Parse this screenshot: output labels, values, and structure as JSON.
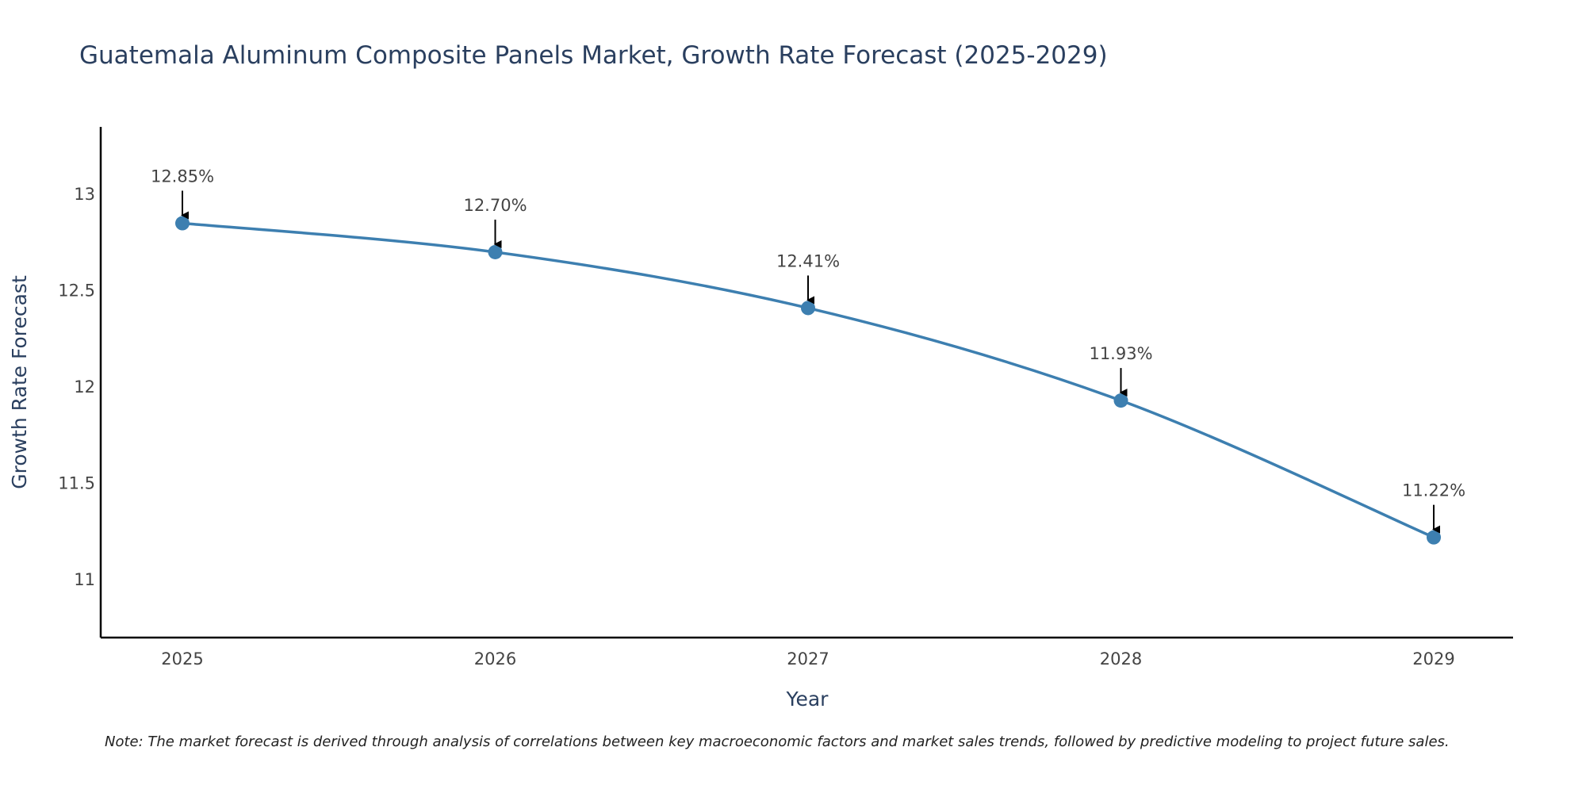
{
  "chart_data": {
    "type": "line",
    "title": "Guatemala Aluminum Composite Panels Market, Growth Rate Forecast (2025-2029)",
    "xlabel": "Year",
    "ylabel": "Growth Rate Forecast",
    "categories": [
      "2025",
      "2026",
      "2027",
      "2028",
      "2029"
    ],
    "series": [
      {
        "name": "Growth Rate Forecast",
        "values": [
          12.85,
          12.7,
          12.41,
          11.93,
          11.22
        ],
        "labels": [
          "12.85%",
          "12.70%",
          "12.41%",
          "11.93%",
          "11.22%"
        ]
      }
    ],
    "ylim": [
      10.7,
      13.35
    ],
    "yticks": [
      11,
      11.5,
      12,
      12.5,
      13
    ],
    "ytick_labels": [
      "11",
      "11.5",
      "12",
      "12.5",
      "13"
    ],
    "grid": false,
    "line_color": "#3d7fb0",
    "marker_color": "#3d7fb0",
    "axis_color": "#000000",
    "annotation_arrow_color": "#000000"
  },
  "note": "Note: The market forecast is derived through analysis of correlations between key macroeconomic factors and market sales trends, followed by predictive modeling to project future sales."
}
